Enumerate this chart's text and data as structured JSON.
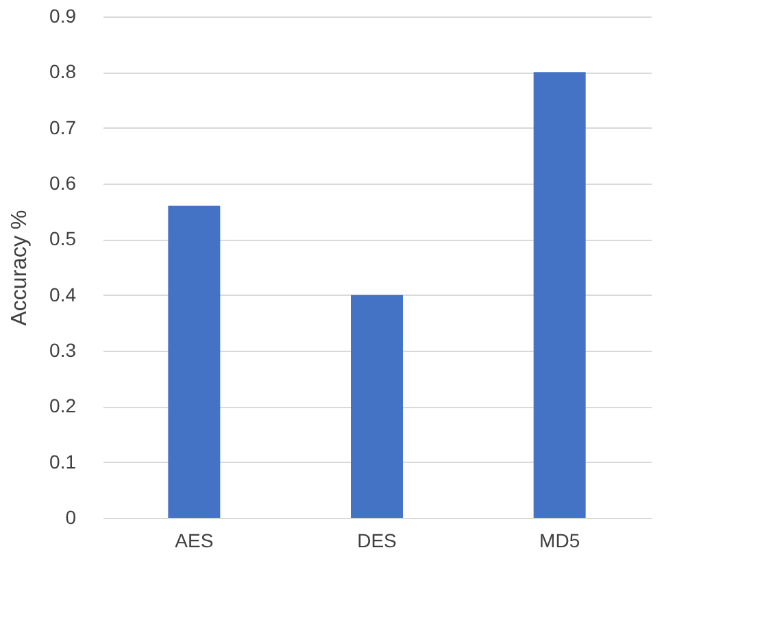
{
  "chart_data": {
    "type": "bar",
    "ylabel": "Accuracy %",
    "categories": [
      "AES",
      "DES",
      "MD5"
    ],
    "values": [
      0.56,
      0.4,
      0.8
    ],
    "color": "#4472c4",
    "ylim": [
      0,
      0.9
    ],
    "yticks": [
      0,
      0.1,
      0.2,
      0.3,
      0.4,
      0.5,
      0.6,
      0.7,
      0.8,
      0.9
    ],
    "grid": "y"
  }
}
